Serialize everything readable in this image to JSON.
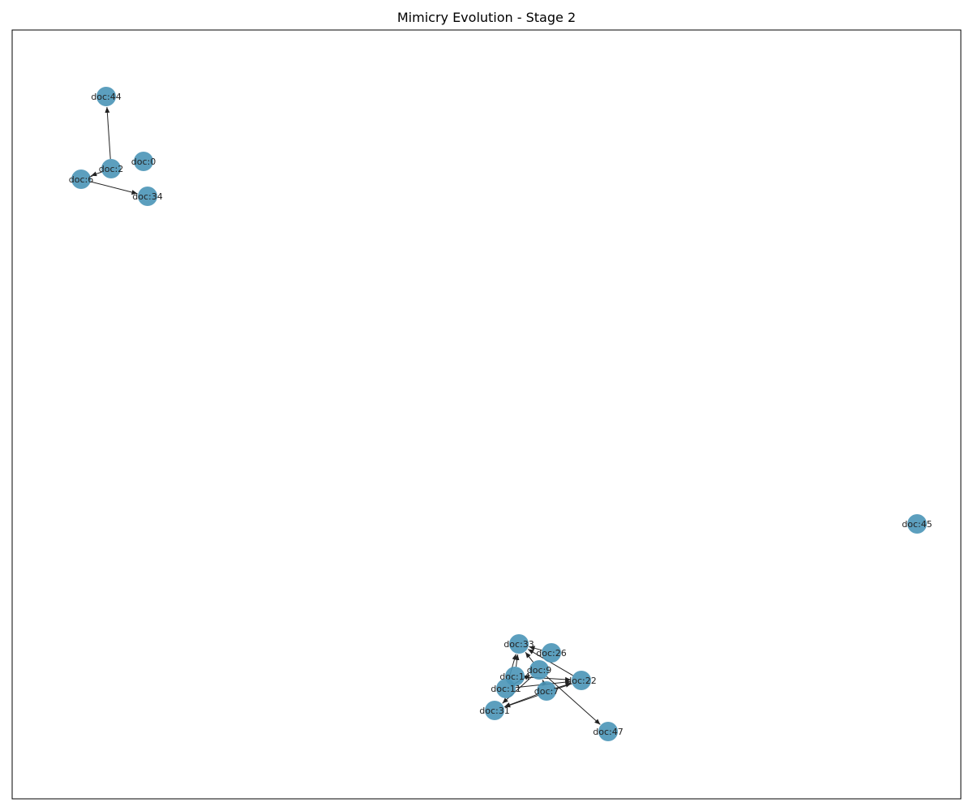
{
  "title": "Mimicry Evolution - Stage 2",
  "colors": {
    "node": "#4a95b7",
    "edge": "#222222",
    "frame": "#000000"
  },
  "nodes": [
    {
      "id": "doc:44"
    },
    {
      "id": "doc:2"
    },
    {
      "id": "doc:0"
    },
    {
      "id": "doc:6"
    },
    {
      "id": "doc:34"
    },
    {
      "id": "doc:45"
    },
    {
      "id": "doc:33"
    },
    {
      "id": "doc:26"
    },
    {
      "id": "doc:9"
    },
    {
      "id": "doc:14"
    },
    {
      "id": "doc:22"
    },
    {
      "id": "doc:11"
    },
    {
      "id": "doc:7"
    },
    {
      "id": "doc:31"
    },
    {
      "id": "doc:47"
    }
  ],
  "edges": [
    {
      "from": "doc:2",
      "to": "doc:44"
    },
    {
      "from": "doc:2",
      "to": "doc:6"
    },
    {
      "from": "doc:6",
      "to": "doc:34"
    },
    {
      "from": "doc:14",
      "to": "doc:33"
    },
    {
      "from": "doc:11",
      "to": "doc:33"
    },
    {
      "from": "doc:9",
      "to": "doc:33"
    },
    {
      "from": "doc:22",
      "to": "doc:33"
    },
    {
      "from": "doc:26",
      "to": "doc:33"
    },
    {
      "from": "doc:9",
      "to": "doc:47"
    },
    {
      "from": "doc:14",
      "to": "doc:22"
    },
    {
      "from": "doc:11",
      "to": "doc:22"
    },
    {
      "from": "doc:7",
      "to": "doc:22"
    },
    {
      "from": "doc:9",
      "to": "doc:31"
    },
    {
      "from": "doc:7",
      "to": "doc:31"
    },
    {
      "from": "doc:22",
      "to": "doc:31"
    },
    {
      "from": "doc:7",
      "to": "doc:9"
    },
    {
      "from": "doc:11",
      "to": "doc:9"
    }
  ]
}
